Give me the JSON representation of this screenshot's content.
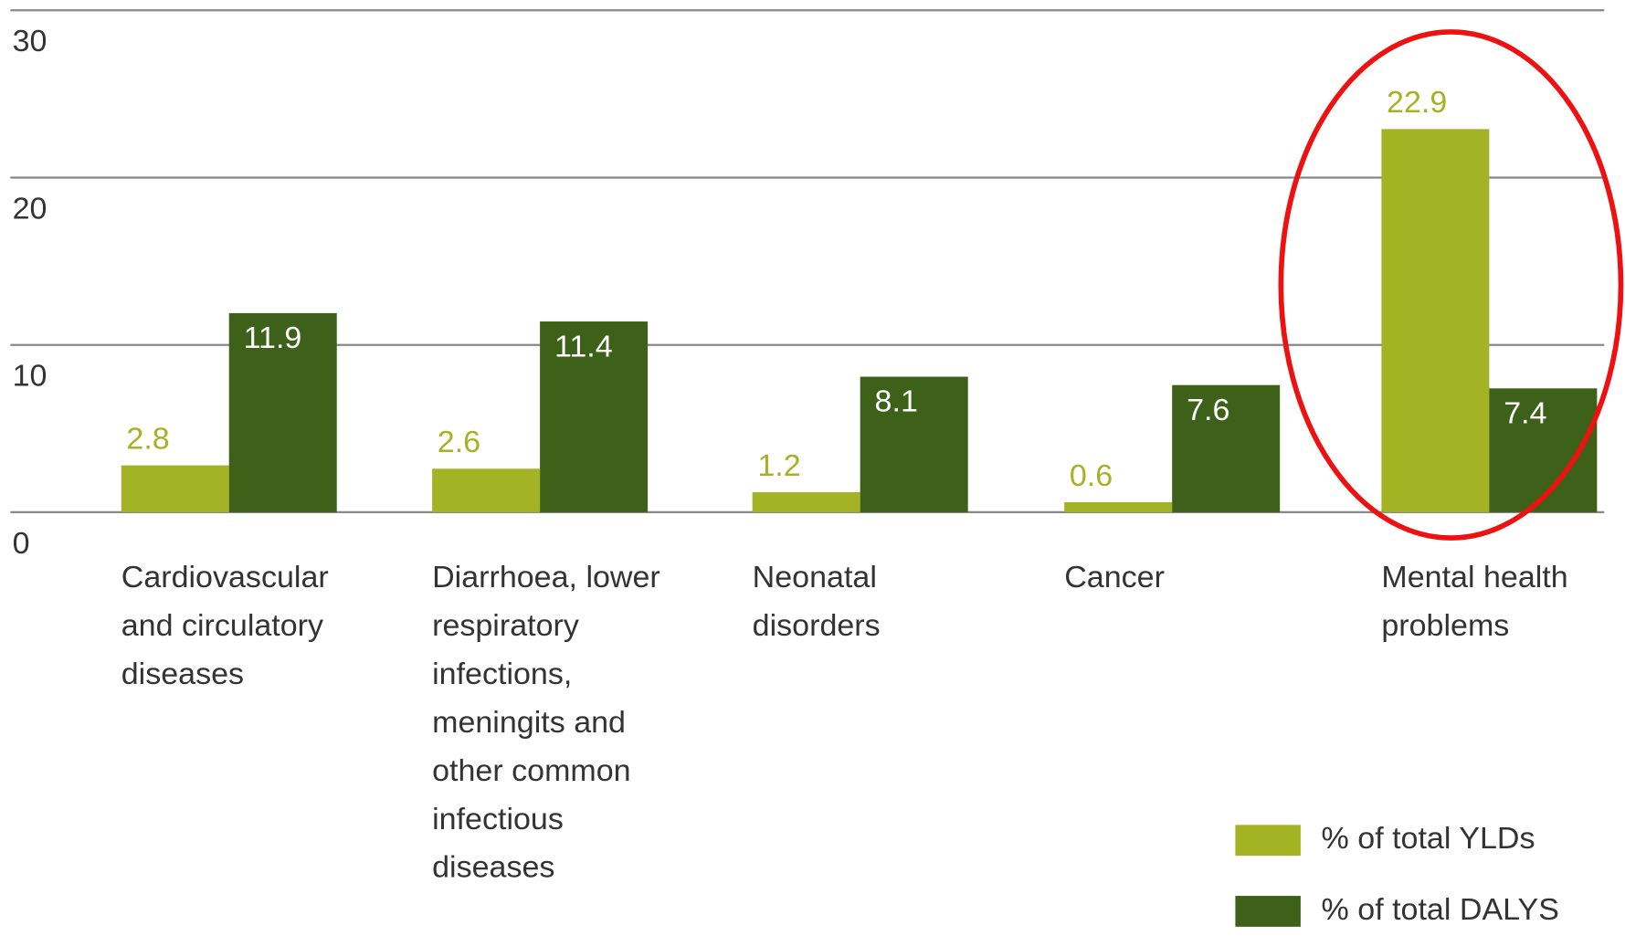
{
  "chart_data": {
    "type": "bar",
    "categories": [
      "Cardiovascular and circulatory diseases",
      "Diarrhoea, lower respiratory infections, meningits and other common infectious diseases",
      "Neonatal disorders",
      "Cancer",
      "Mental health problems"
    ],
    "series": [
      {
        "name": "% of total YLDs",
        "color": "#a3b324",
        "values": [
          2.8,
          2.6,
          1.2,
          0.6,
          22.9
        ]
      },
      {
        "name": "% of total DALYS",
        "color": "#3d6118",
        "values": [
          11.9,
          11.4,
          8.1,
          7.6,
          7.4
        ]
      }
    ],
    "ylim": [
      0,
      30
    ],
    "yticks": [
      0,
      10,
      20,
      30
    ],
    "grid": true
  }
}
